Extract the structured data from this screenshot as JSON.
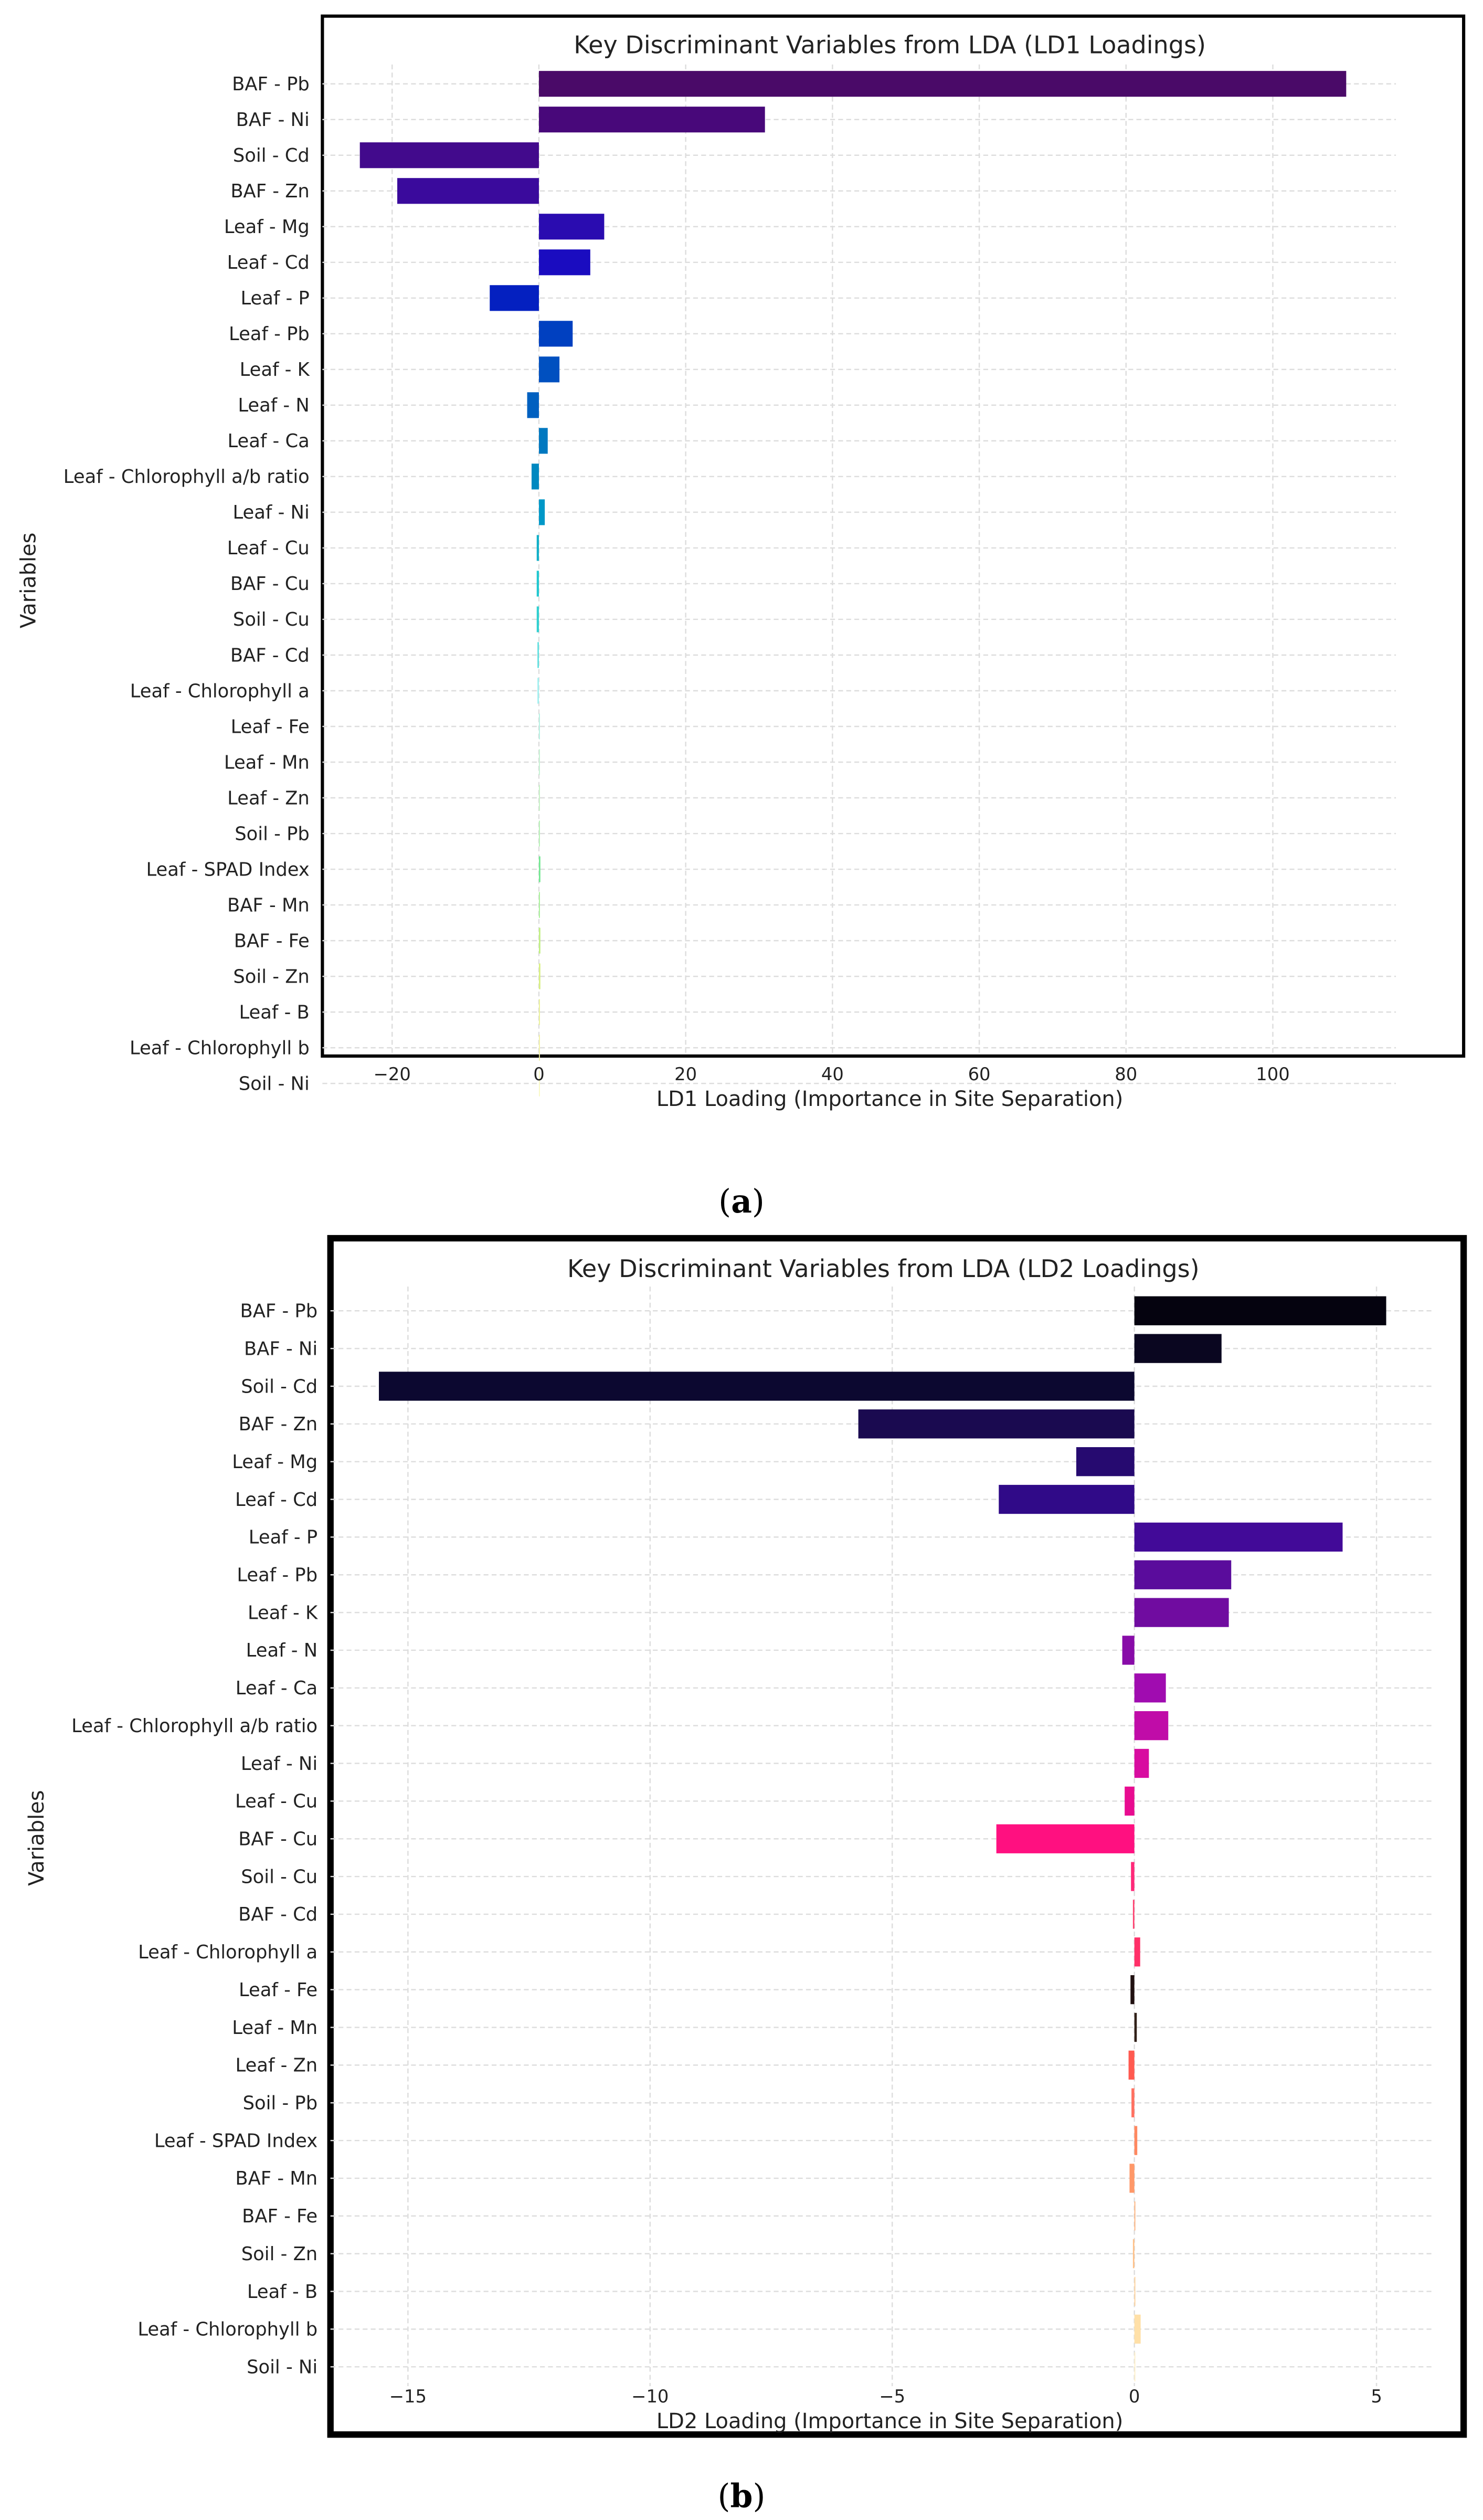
{
  "chart_data": [
    {
      "type": "bar",
      "orientation": "horizontal",
      "panel_label": "a",
      "title": "Key Discriminant Variables from LDA (LD1 Loadings)",
      "xlabel": "LD1 Loading (Importance in Site Separation)",
      "ylabel": "Variables",
      "xlim": [
        -29.5,
        126
      ],
      "xticks": [
        -20,
        0,
        20,
        40,
        60,
        80,
        100
      ],
      "xtick_labels": [
        "−20",
        "0",
        "20",
        "40",
        "60",
        "80",
        "100"
      ],
      "grid": true,
      "categories": [
        "BAF - Pb",
        "BAF - Ni",
        "Soil - Cd",
        "BAF - Zn",
        "Leaf - Mg",
        "Leaf - Cd",
        "Leaf - P",
        "Leaf - Pb",
        "Leaf - K",
        "Leaf - N",
        "Leaf - Ca",
        "Leaf - Chlorophyll a/b ratio",
        "Leaf - Ni",
        "Leaf - Cu",
        "BAF - Cu",
        "Soil - Cu",
        "BAF - Cd",
        "Leaf - Chlorophyll a",
        "Leaf - Fe",
        "Leaf - Mn",
        "Leaf - Zn",
        "Soil - Pb",
        "Leaf - SPAD Index",
        "BAF - Mn",
        "BAF - Fe",
        "Soil - Zn",
        "Leaf - B",
        "Leaf - Chlorophyll b",
        "Soil - Ni"
      ],
      "values": [
        110.0,
        30.8,
        -24.4,
        -19.3,
        8.9,
        7.0,
        -6.7,
        4.6,
        2.8,
        -1.6,
        1.2,
        -1.0,
        0.8,
        -0.3,
        -0.3,
        -0.3,
        -0.2,
        -0.2,
        0.1,
        0.1,
        0.05,
        0.05,
        0.2,
        0.05,
        0.2,
        0.2,
        0.05,
        0.05,
        0.02
      ],
      "colors": [
        "#4a0a68",
        "#48087a",
        "#420a8c",
        "#3a0a9c",
        "#2a0cb0",
        "#1a0cc0",
        "#0420c0",
        "#0040c0",
        "#0050c0",
        "#0060c0",
        "#0078c0",
        "#0088c0",
        "#0098c8",
        "#10b0c8",
        "#20c8d0",
        "#30d0d0",
        "#60e0e0",
        "#a0f0f0",
        "#b0f0e0",
        "#c0f0d0",
        "#c0f0c0",
        "#b0f0b0",
        "#70e890",
        "#a0f090",
        "#c0f080",
        "#d8f080",
        "#e8f090",
        "#f0f0a0",
        "#f8f8c0"
      ]
    },
    {
      "type": "bar",
      "orientation": "horizontal",
      "panel_label": "b",
      "title": "Key Discriminant Variables from LDA (LD2 Loadings)",
      "xlabel": "LD2 Loading (Importance in Site Separation)",
      "ylabel": "Variables",
      "xlim": [
        -16.6,
        6.2
      ],
      "xticks": [
        -15,
        -10,
        -5,
        0,
        5
      ],
      "xtick_labels": [
        "−15",
        "−10",
        "−5",
        "0",
        "5"
      ],
      "grid": true,
      "categories": [
        "BAF - Pb",
        "BAF - Ni",
        "Soil - Cd",
        "BAF - Zn",
        "Leaf - Mg",
        "Leaf - Cd",
        "Leaf - P",
        "Leaf - Pb",
        "Leaf - K",
        "Leaf - N",
        "Leaf - Ca",
        "Leaf - Chlorophyll a/b ratio",
        "Leaf - Ni",
        "Leaf - Cu",
        "BAF - Cu",
        "Soil - Cu",
        "BAF - Cd",
        "Leaf - Chlorophyll a",
        "Leaf - Fe",
        "Leaf - Mn",
        "Leaf - Zn",
        "Soil - Pb",
        "Leaf - SPAD Index",
        "BAF - Mn",
        "BAF - Fe",
        "Soil - Zn",
        "Leaf - B",
        "Leaf - Chlorophyll b",
        "Soil - Ni"
      ],
      "values": [
        5.2,
        1.8,
        -15.6,
        -5.7,
        -1.2,
        -2.8,
        4.3,
        2.0,
        1.95,
        -0.25,
        0.65,
        0.7,
        0.3,
        -0.2,
        -2.85,
        -0.07,
        -0.03,
        0.12,
        -0.08,
        0.05,
        -0.12,
        -0.06,
        0.06,
        -0.1,
        0.02,
        -0.03,
        0.02,
        0.13,
        0.0
      ],
      "colors": [
        "#05030f",
        "#0a0620",
        "#0c0830",
        "#1a0a50",
        "#260a70",
        "#300a88",
        "#420a98",
        "#5a0c9c",
        "#700ca0",
        "#880ca8",
        "#a00cb0",
        "#c00ca8",
        "#d80ca0",
        "#e80c90",
        "#ff1080",
        "#ff2878",
        "#ff4070",
        "#ff3068",
        "#201010",
        "#302018",
        "#ff5a50",
        "#ff7060",
        "#ff8860",
        "#ff9868",
        "#ffb078",
        "#ffc088",
        "#ffd098",
        "#ffe0a8",
        "#fff0c8"
      ]
    }
  ],
  "captions": {
    "a": "a",
    "b": "b"
  }
}
